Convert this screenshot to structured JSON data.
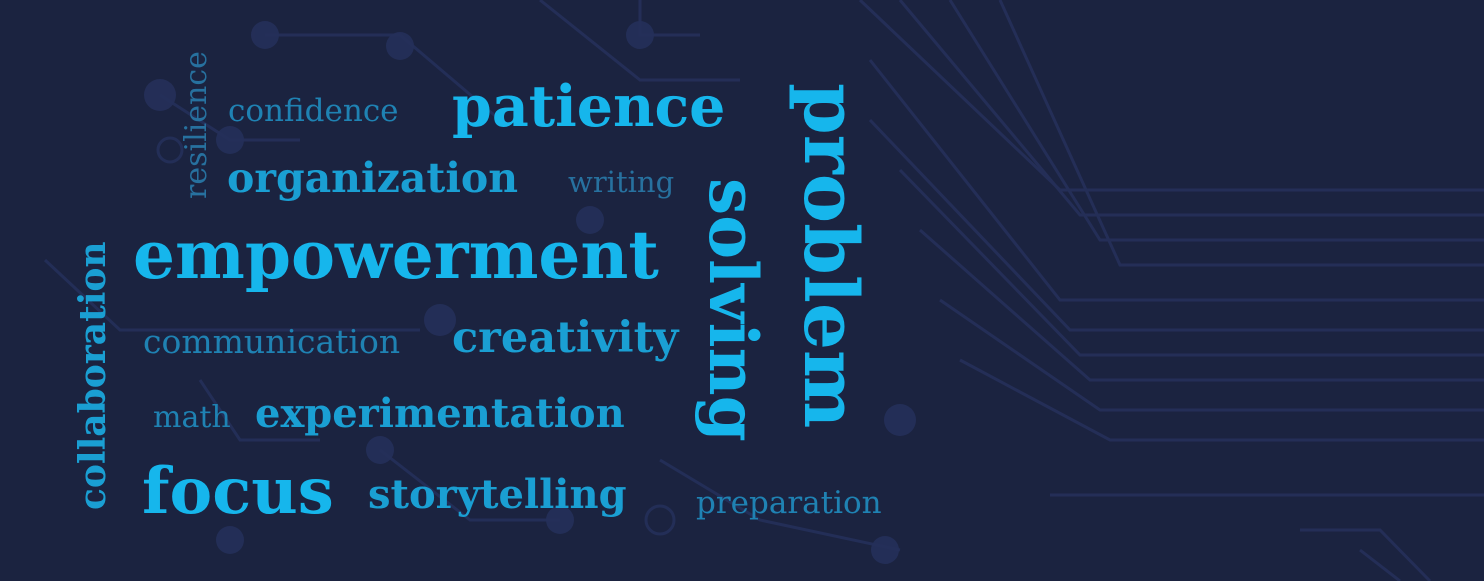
{
  "colors": {
    "background": "#1b2340",
    "circuit": "#26325a",
    "word_bright": "#16b6ec",
    "word_mid": "#1a9fd3",
    "word_dim": "#1f82b3",
    "word_faint": "#27719f"
  },
  "words": {
    "resilience": "resilience",
    "confidence": "confidence",
    "patience": "patience",
    "organization": "organization",
    "writing": "writing",
    "empowerment": "empowerment",
    "collaboration": "collaboration",
    "communication": "communication",
    "creativity": "creativity",
    "math": "math",
    "experimentation": "experimentation",
    "focus": "focus",
    "storytelling": "storytelling",
    "preparation": "preparation",
    "solving": "solving",
    "problem": "problem"
  }
}
